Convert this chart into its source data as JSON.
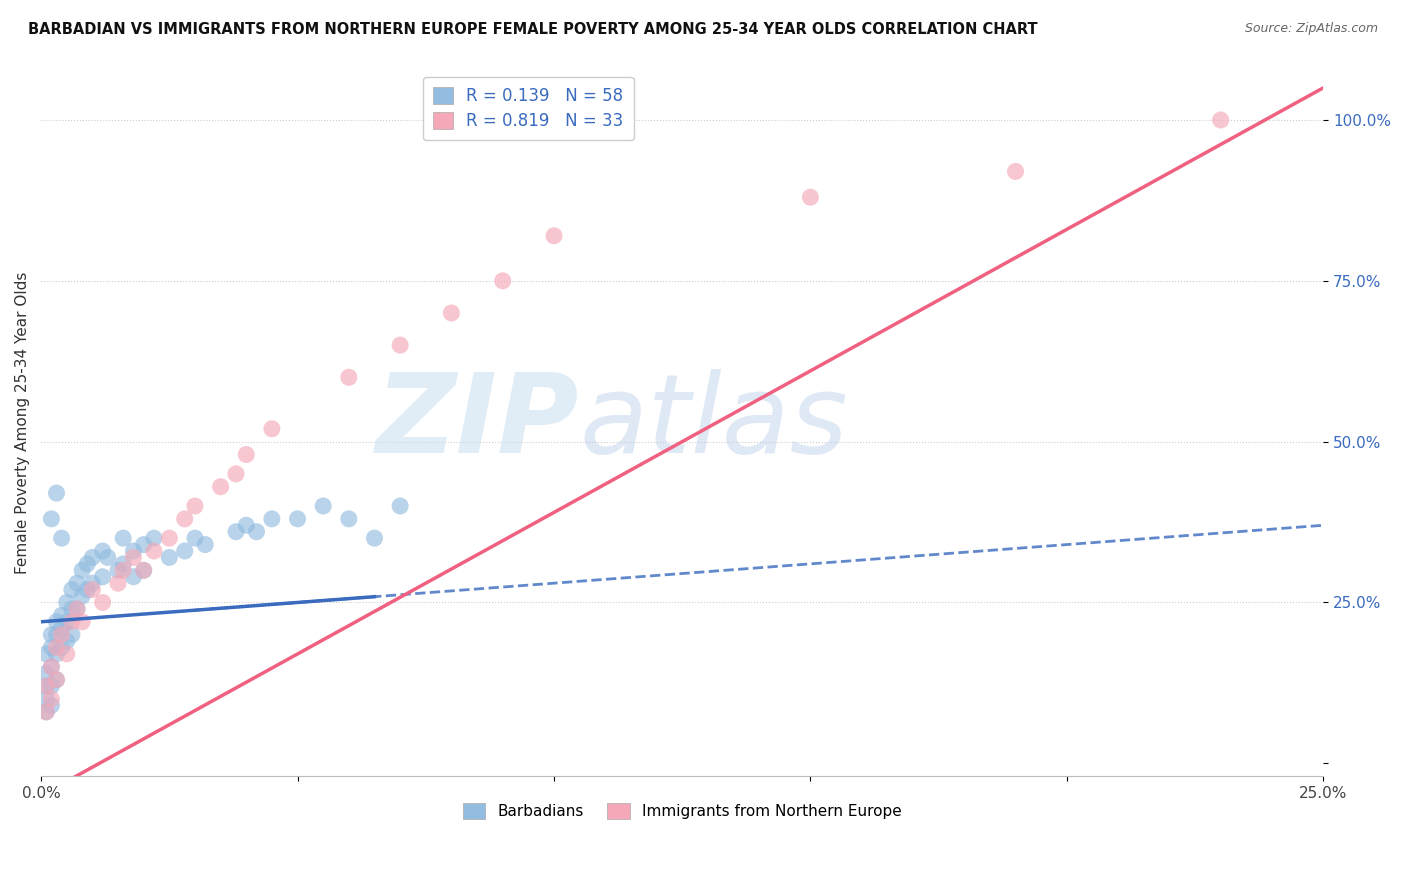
{
  "title": "BARBADIAN VS IMMIGRANTS FROM NORTHERN EUROPE FEMALE POVERTY AMONG 25-34 YEAR OLDS CORRELATION CHART",
  "source": "Source: ZipAtlas.com",
  "ylabel": "Female Poverty Among 25-34 Year Olds",
  "xlim": [
    0.0,
    0.25
  ],
  "ylim": [
    -0.02,
    1.08
  ],
  "xticks": [
    0.0,
    0.05,
    0.1,
    0.15,
    0.2,
    0.25
  ],
  "xticklabels": [
    "0.0%",
    "",
    "",
    "",
    "",
    "25.0%"
  ],
  "yticks": [
    0.0,
    0.25,
    0.5,
    0.75,
    1.0
  ],
  "yticklabels": [
    "",
    "25.0%",
    "50.0%",
    "75.0%",
    "100.0%"
  ],
  "legend_label1": "Barbadians",
  "legend_label2": "Immigrants from Northern Europe",
  "watermark_zip": "ZIP",
  "watermark_atlas": "atlas",
  "blue_color": "#92bce0",
  "pink_color": "#f4a8b8",
  "blue_line_color": "#3a6bbf",
  "pink_line_color": "#f06080",
  "background_color": "#ffffff",
  "grid_color": "#cccccc",
  "R_blue": 0.139,
  "N_blue": 58,
  "R_pink": 0.819,
  "N_pink": 33,
  "blue_scatter_x": [
    0.001,
    0.001,
    0.001,
    0.001,
    0.001,
    0.002,
    0.002,
    0.002,
    0.002,
    0.002,
    0.003,
    0.003,
    0.003,
    0.003,
    0.004,
    0.004,
    0.004,
    0.005,
    0.005,
    0.005,
    0.006,
    0.006,
    0.006,
    0.007,
    0.007,
    0.008,
    0.008,
    0.009,
    0.009,
    0.01,
    0.01,
    0.012,
    0.012,
    0.013,
    0.015,
    0.016,
    0.016,
    0.018,
    0.018,
    0.02,
    0.02,
    0.022,
    0.025,
    0.028,
    0.03,
    0.032,
    0.038,
    0.04,
    0.042,
    0.045,
    0.05,
    0.055,
    0.06,
    0.065,
    0.07,
    0.002,
    0.003,
    0.004
  ],
  "blue_scatter_y": [
    0.17,
    0.14,
    0.12,
    0.1,
    0.08,
    0.2,
    0.18,
    0.15,
    0.12,
    0.09,
    0.22,
    0.2,
    0.17,
    0.13,
    0.23,
    0.21,
    0.18,
    0.25,
    0.22,
    0.19,
    0.27,
    0.24,
    0.2,
    0.28,
    0.24,
    0.3,
    0.26,
    0.31,
    0.27,
    0.32,
    0.28,
    0.33,
    0.29,
    0.32,
    0.3,
    0.35,
    0.31,
    0.33,
    0.29,
    0.34,
    0.3,
    0.35,
    0.32,
    0.33,
    0.35,
    0.34,
    0.36,
    0.37,
    0.36,
    0.38,
    0.38,
    0.4,
    0.38,
    0.35,
    0.4,
    0.38,
    0.42,
    0.35
  ],
  "pink_scatter_x": [
    0.001,
    0.001,
    0.002,
    0.002,
    0.003,
    0.003,
    0.004,
    0.005,
    0.006,
    0.007,
    0.008,
    0.01,
    0.012,
    0.015,
    0.016,
    0.018,
    0.02,
    0.022,
    0.025,
    0.028,
    0.03,
    0.035,
    0.038,
    0.04,
    0.045,
    0.06,
    0.07,
    0.08,
    0.09,
    0.1,
    0.15,
    0.19,
    0.23
  ],
  "pink_scatter_y": [
    0.12,
    0.08,
    0.15,
    0.1,
    0.18,
    0.13,
    0.2,
    0.17,
    0.22,
    0.24,
    0.22,
    0.27,
    0.25,
    0.28,
    0.3,
    0.32,
    0.3,
    0.33,
    0.35,
    0.38,
    0.4,
    0.43,
    0.45,
    0.48,
    0.52,
    0.6,
    0.65,
    0.7,
    0.75,
    0.82,
    0.88,
    0.92,
    1.0
  ]
}
